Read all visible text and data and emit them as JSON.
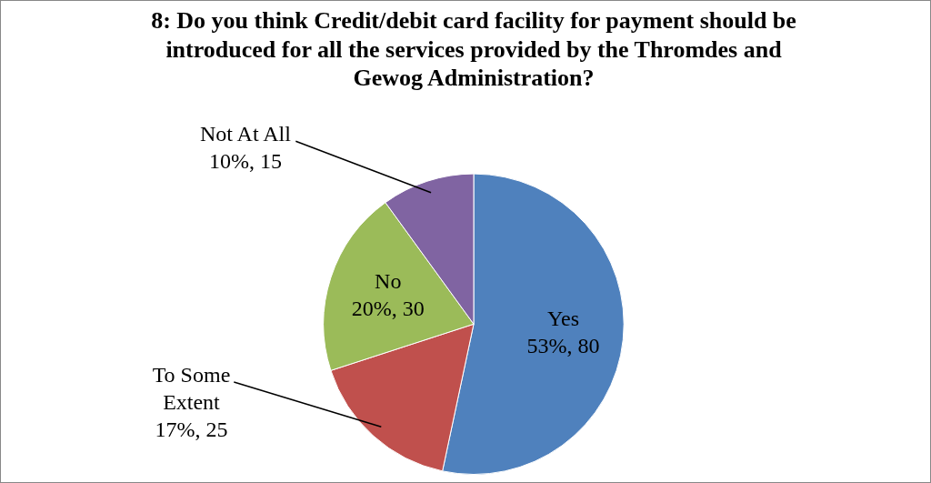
{
  "chart_data": {
    "type": "pie",
    "title": "8: Do you think Credit/debit card facility for payment should be introduced for all the services provided by the Thromdes and Gewog Administration?",
    "categories": [
      "Yes",
      "To Some Extent",
      "No",
      "Not At All"
    ],
    "values": [
      80,
      25,
      30,
      15
    ],
    "value_labels": [
      "53%, 80",
      "17%, 25",
      "20%, 30",
      "10%, 15"
    ],
    "colors": [
      "#4f81bd",
      "#c0504d",
      "#9bbb59",
      "#8064a2"
    ],
    "legend": false
  }
}
